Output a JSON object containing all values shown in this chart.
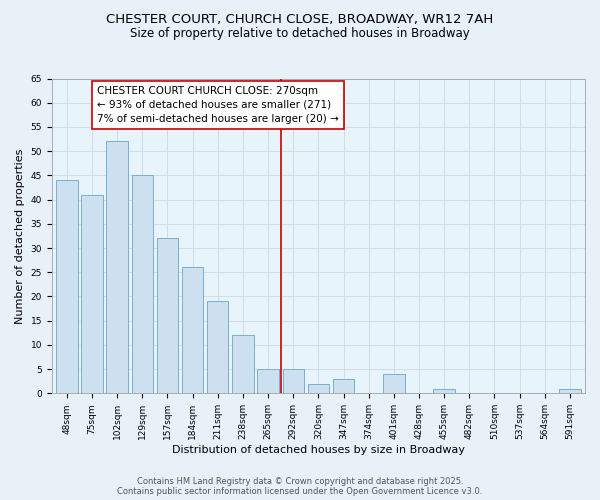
{
  "title1": "CHESTER COURT, CHURCH CLOSE, BROADWAY, WR12 7AH",
  "title2": "Size of property relative to detached houses in Broadway",
  "xlabel": "Distribution of detached houses by size in Broadway",
  "ylabel": "Number of detached properties",
  "bar_labels": [
    "48sqm",
    "75sqm",
    "102sqm",
    "129sqm",
    "157sqm",
    "184sqm",
    "211sqm",
    "238sqm",
    "265sqm",
    "292sqm",
    "320sqm",
    "347sqm",
    "374sqm",
    "401sqm",
    "428sqm",
    "455sqm",
    "482sqm",
    "510sqm",
    "537sqm",
    "564sqm",
    "591sqm"
  ],
  "bar_values": [
    44,
    41,
    52,
    45,
    32,
    26,
    19,
    12,
    5,
    5,
    2,
    3,
    0,
    4,
    0,
    1,
    0,
    0,
    0,
    0,
    1
  ],
  "bar_color": "#cce0f0",
  "bar_edge_color": "#7aaed0",
  "grid_color": "#d0dce8",
  "vline_color": "#cc0000",
  "annotation_text": "CHESTER COURT CHURCH CLOSE: 270sqm\n← 93% of detached houses are smaller (271)\n7% of semi-detached houses are larger (20) →",
  "annotation_box_color": "#ffffff",
  "annotation_box_edge": "#cc0000",
  "ylim": [
    0,
    65
  ],
  "yticks": [
    0,
    5,
    10,
    15,
    20,
    25,
    30,
    35,
    40,
    45,
    50,
    55,
    60,
    65
  ],
  "footnote1": "Contains HM Land Registry data © Crown copyright and database right 2025.",
  "footnote2": "Contains public sector information licensed under the Open Government Licence v3.0.",
  "bg_color": "#e8f0f8",
  "plot_bg_color": "#e8f4fc",
  "title_fontsize": 9.5,
  "subtitle_fontsize": 8.5,
  "tick_fontsize": 6.5,
  "axis_label_fontsize": 8,
  "annotation_fontsize": 7.5,
  "footnote_fontsize": 6
}
